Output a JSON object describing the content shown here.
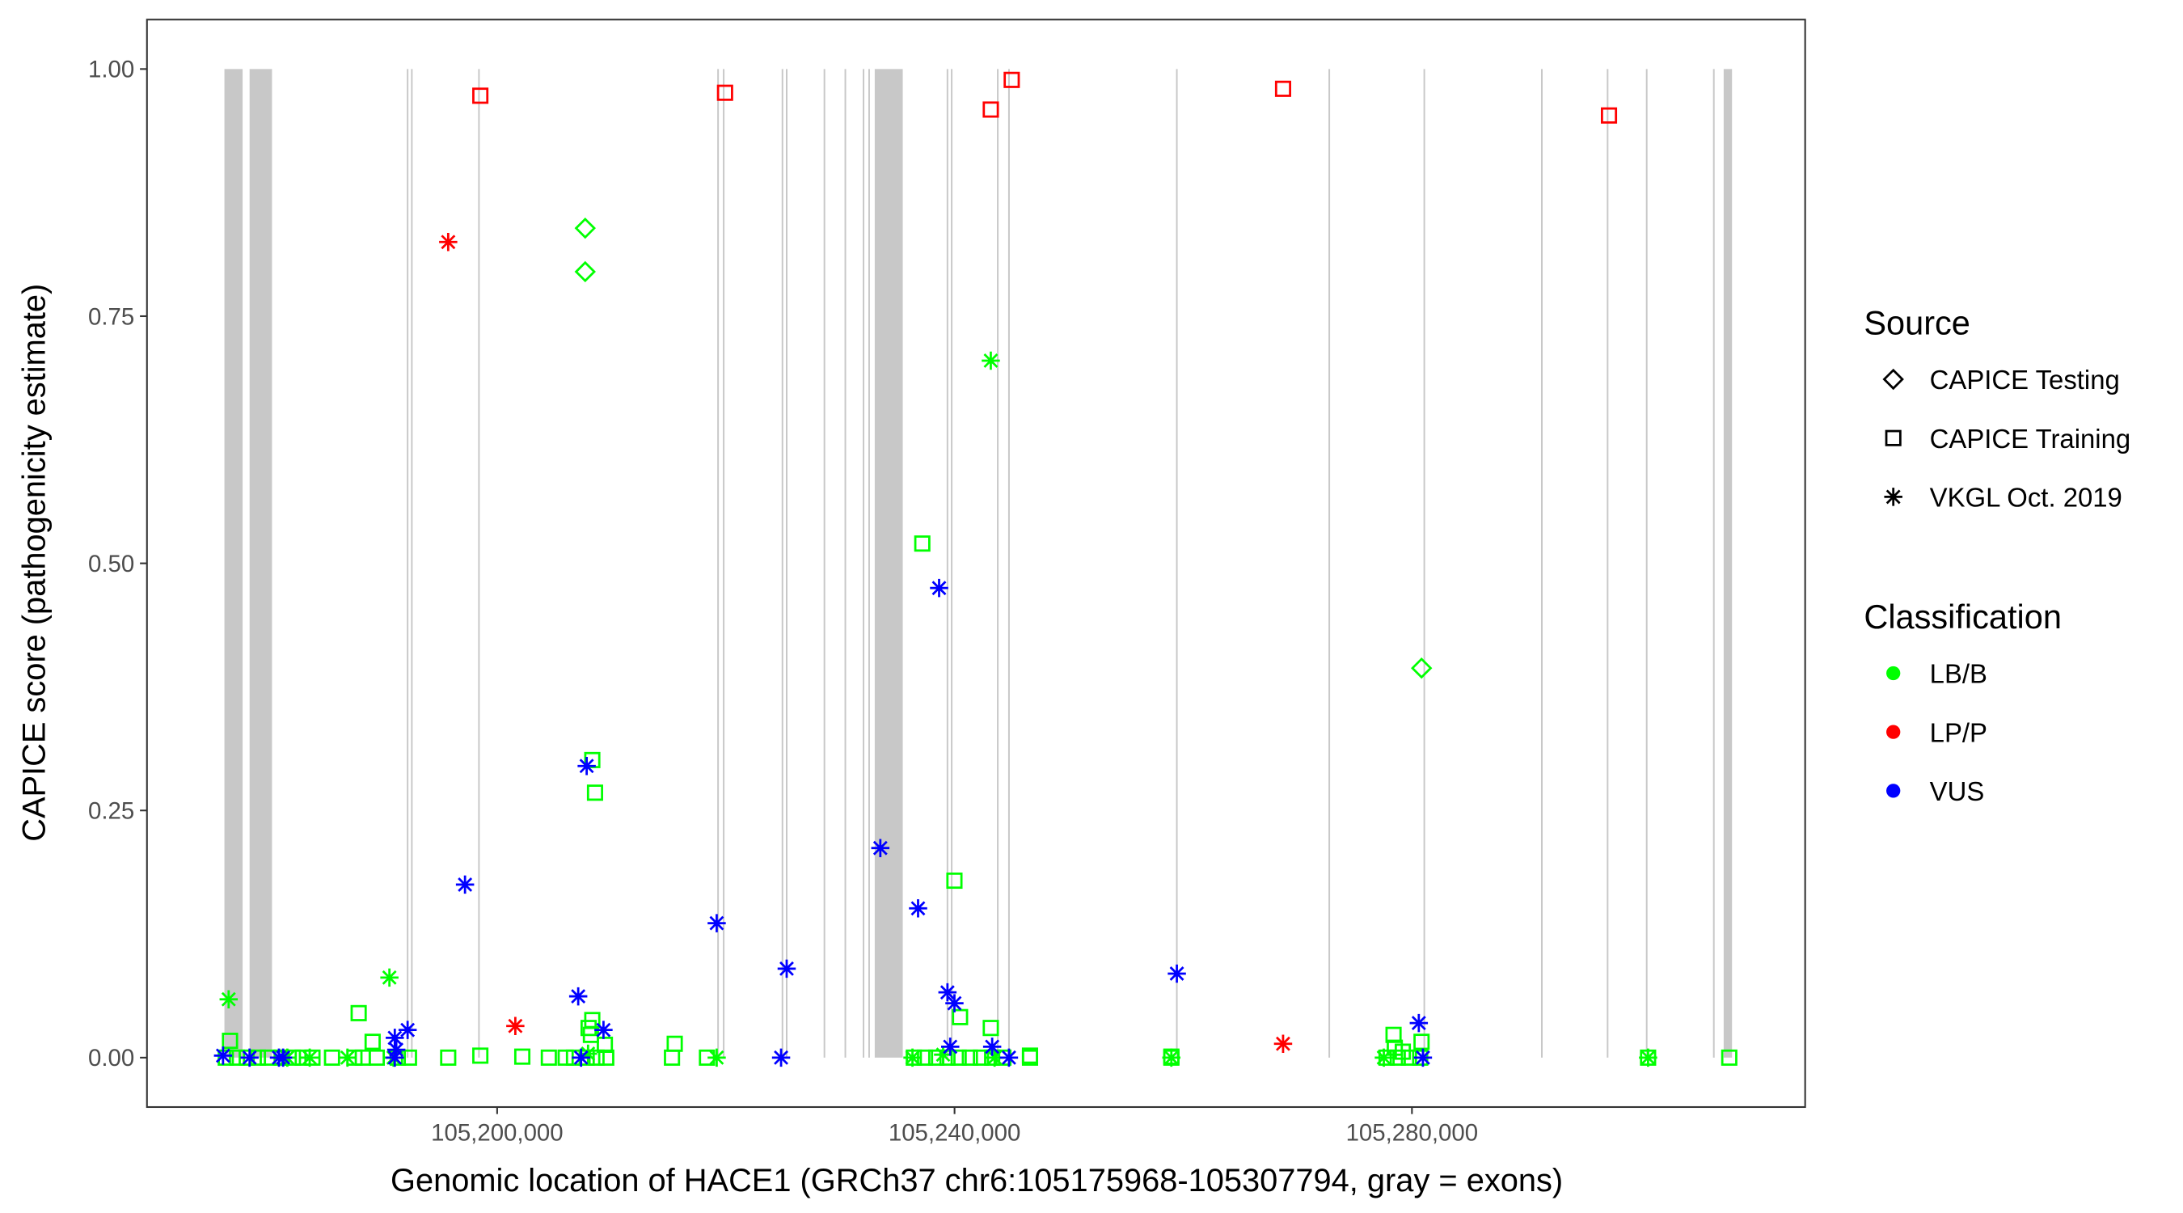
{
  "chart_data": {
    "type": "scatter",
    "xlabel": "Genomic location of HACE1 (GRCh37 chr6:105175968-105307794, gray = exons)",
    "ylabel": "CAPICE score (pathogenicity estimate)",
    "xlim": [
      105169377,
      105314385
    ],
    "ylim": [
      -0.05,
      1.05
    ],
    "x_ticks": [
      105200000,
      105240000,
      105280000
    ],
    "x_tick_labels": [
      "105,200,000",
      "105,240,000",
      "105,280,000"
    ],
    "y_ticks": [
      0,
      0.25,
      0.5,
      0.75,
      1.0
    ],
    "y_tick_labels": [
      "0.00",
      "0.25",
      "0.50",
      "0.75",
      "1.00"
    ],
    "grid": false,
    "exon_color": "#c8c8c8",
    "exons": [
      [
        105176150,
        105177740
      ],
      [
        105178350,
        105180310
      ],
      [
        105192100,
        105192240
      ],
      [
        105192470,
        105192610
      ],
      [
        105198340,
        105198480
      ],
      [
        105219250,
        105219390
      ],
      [
        105219740,
        105219880
      ],
      [
        105224880,
        105225020
      ],
      [
        105225250,
        105225390
      ],
      [
        105228550,
        105228690
      ],
      [
        105230380,
        105230520
      ],
      [
        105231970,
        105232110
      ],
      [
        105232460,
        105232600
      ],
      [
        105233020,
        105235470
      ],
      [
        105239310,
        105239450
      ],
      [
        105239680,
        105239820
      ],
      [
        105243710,
        105243850
      ],
      [
        105244690,
        105244830
      ],
      [
        105259370,
        105259510
      ],
      [
        105272700,
        105272840
      ],
      [
        105281010,
        105281150
      ],
      [
        105291290,
        105291430
      ],
      [
        105297040,
        105297180
      ],
      [
        105300460,
        105300600
      ],
      [
        105306330,
        105306470
      ],
      [
        105307260,
        105307990
      ]
    ],
    "legend": {
      "placement": "right",
      "source_title": "Source",
      "sources": [
        {
          "label": "CAPICE Testing",
          "shape": "diamond"
        },
        {
          "label": "CAPICE Training",
          "shape": "square"
        },
        {
          "label": "VKGL Oct. 2019",
          "shape": "asterisk"
        }
      ],
      "class_title": "Classification",
      "classes": [
        {
          "label": "LB/B",
          "color": "#00ff00"
        },
        {
          "label": "LP/P",
          "color": "#ff0000"
        },
        {
          "label": "VUS",
          "color": "#0000ff"
        }
      ]
    },
    "point_fields": [
      "position",
      "score",
      "source_index",
      "class_index"
    ],
    "points": [
      [
        105198530,
        0.973,
        1,
        1
      ],
      [
        105219930,
        0.976,
        1,
        1
      ],
      [
        105243170,
        0.959,
        1,
        1
      ],
      [
        105245000,
        0.989,
        1,
        1
      ],
      [
        105268730,
        0.98,
        1,
        1
      ],
      [
        105297230,
        0.953,
        1,
        1
      ],
      [
        105195720,
        0.825,
        2,
        1
      ],
      [
        105201590,
        0.032,
        2,
        1
      ],
      [
        105268730,
        0.014,
        2,
        1
      ],
      [
        105207700,
        0.839,
        0,
        0
      ],
      [
        105207700,
        0.795,
        0,
        0
      ],
      [
        105280840,
        0.394,
        0,
        0
      ],
      [
        105243170,
        0.705,
        2,
        0
      ],
      [
        105176520,
        0.059,
        2,
        0
      ],
      [
        105190580,
        0.081,
        2,
        0
      ],
      [
        105237180,
        0.52,
        1,
        0
      ],
      [
        105208320,
        0.301,
        1,
        0
      ],
      [
        105208560,
        0.268,
        1,
        0
      ],
      [
        105239990,
        0.179,
        1,
        0
      ],
      [
        105187890,
        0.045,
        1,
        0
      ],
      [
        105208320,
        0.038,
        1,
        0
      ],
      [
        105240480,
        0.041,
        1,
        0
      ],
      [
        105243170,
        0.03,
        1,
        0
      ],
      [
        105278390,
        0.023,
        1,
        0
      ],
      [
        105280840,
        0.016,
        1,
        0
      ],
      [
        105215530,
        0.014,
        1,
        0
      ],
      [
        105176640,
        0.017,
        1,
        0
      ],
      [
        105189110,
        0.016,
        1,
        0
      ],
      [
        105209420,
        0.013,
        1,
        0
      ],
      [
        105208200,
        0.023,
        1,
        0
      ],
      [
        105208000,
        0.03,
        1,
        0
      ],
      [
        105176270,
        0,
        1,
        0
      ],
      [
        105177250,
        0,
        1,
        0
      ],
      [
        105178100,
        0,
        1,
        0
      ],
      [
        105179080,
        0,
        1,
        0
      ],
      [
        105179940,
        0,
        1,
        0
      ],
      [
        105181160,
        0,
        1,
        0
      ],
      [
        105182140,
        0,
        1,
        0
      ],
      [
        105183000,
        0,
        1,
        0
      ],
      [
        105183850,
        0,
        1,
        0
      ],
      [
        105185560,
        0,
        1,
        0
      ],
      [
        105187520,
        0,
        1,
        0
      ],
      [
        105188250,
        0,
        1,
        0
      ],
      [
        105189470,
        0,
        1,
        0
      ],
      [
        105191310,
        0,
        1,
        0
      ],
      [
        105192290,
        0,
        1,
        0
      ],
      [
        105195720,
        0,
        1,
        0
      ],
      [
        105198530,
        0.002,
        1,
        0
      ],
      [
        105202200,
        0.001,
        1,
        0
      ],
      [
        105204520,
        0,
        1,
        0
      ],
      [
        105205990,
        0,
        1,
        0
      ],
      [
        105206720,
        0,
        1,
        0
      ],
      [
        105207830,
        0,
        1,
        0
      ],
      [
        105208690,
        0,
        1,
        0
      ],
      [
        105209540,
        0,
        1,
        0
      ],
      [
        105215290,
        0,
        1,
        0
      ],
      [
        105218350,
        0,
        1,
        0
      ],
      [
        105236440,
        0,
        1,
        0
      ],
      [
        105237420,
        0,
        1,
        0
      ],
      [
        105238400,
        0,
        1,
        0
      ],
      [
        105239380,
        0,
        1,
        0
      ],
      [
        105240360,
        0,
        1,
        0
      ],
      [
        105241340,
        0,
        1,
        0
      ],
      [
        105242310,
        0,
        1,
        0
      ],
      [
        105243290,
        0,
        1,
        0
      ],
      [
        105244270,
        0,
        1,
        0
      ],
      [
        105246600,
        0,
        1,
        0
      ],
      [
        105246600,
        0.002,
        1,
        0
      ],
      [
        105258960,
        0,
        1,
        0
      ],
      [
        105258960,
        0.001,
        1,
        0
      ],
      [
        105277780,
        0,
        1,
        0
      ],
      [
        105278760,
        0,
        1,
        0
      ],
      [
        105279740,
        0,
        1,
        0
      ],
      [
        105280720,
        0,
        1,
        0
      ],
      [
        105279200,
        0.006,
        1,
        0
      ],
      [
        105278500,
        0.01,
        1,
        0
      ],
      [
        105300650,
        0,
        1,
        0
      ],
      [
        105307750,
        0,
        1,
        0
      ],
      [
        105181650,
        0,
        2,
        0
      ],
      [
        105183610,
        0,
        2,
        0
      ],
      [
        105186910,
        0,
        2,
        0
      ],
      [
        105190940,
        0,
        2,
        0
      ],
      [
        105219200,
        0,
        2,
        0
      ],
      [
        105236320,
        0,
        2,
        0
      ],
      [
        105258960,
        0,
        2,
        0
      ],
      [
        105277540,
        0,
        2,
        0
      ],
      [
        105300650,
        0,
        2,
        0
      ],
      [
        105239000,
        0.003,
        2,
        0
      ],
      [
        105243500,
        0,
        2,
        0
      ],
      [
        105207950,
        0.004,
        2,
        0
      ],
      [
        105238650,
        0.475,
        2,
        2
      ],
      [
        105207830,
        0.295,
        2,
        2
      ],
      [
        105233510,
        0.212,
        2,
        2
      ],
      [
        105197190,
        0.175,
        2,
        2
      ],
      [
        105219200,
        0.136,
        2,
        2
      ],
      [
        105236810,
        0.151,
        2,
        2
      ],
      [
        105225320,
        0.09,
        2,
        2
      ],
      [
        105259440,
        0.085,
        2,
        2
      ],
      [
        105239380,
        0.066,
        2,
        2
      ],
      [
        105239990,
        0.055,
        2,
        2
      ],
      [
        105207090,
        0.062,
        2,
        2
      ],
      [
        105280600,
        0.035,
        2,
        2
      ],
      [
        105192170,
        0.028,
        2,
        2
      ],
      [
        105209300,
        0.028,
        2,
        2
      ],
      [
        105191050,
        0.02,
        2,
        2
      ],
      [
        105239620,
        0.011,
        2,
        2
      ],
      [
        105243290,
        0.011,
        2,
        2
      ],
      [
        105191180,
        0.008,
        2,
        2
      ],
      [
        105176030,
        0.002,
        2,
        2
      ],
      [
        105178350,
        0,
        2,
        2
      ],
      [
        105180920,
        0,
        2,
        2
      ],
      [
        105181280,
        0,
        2,
        2
      ],
      [
        105191050,
        0,
        2,
        2
      ],
      [
        105207340,
        0,
        2,
        2
      ],
      [
        105224830,
        0,
        2,
        2
      ],
      [
        105244760,
        0,
        2,
        2
      ],
      [
        105280960,
        0,
        2,
        2
      ]
    ]
  }
}
